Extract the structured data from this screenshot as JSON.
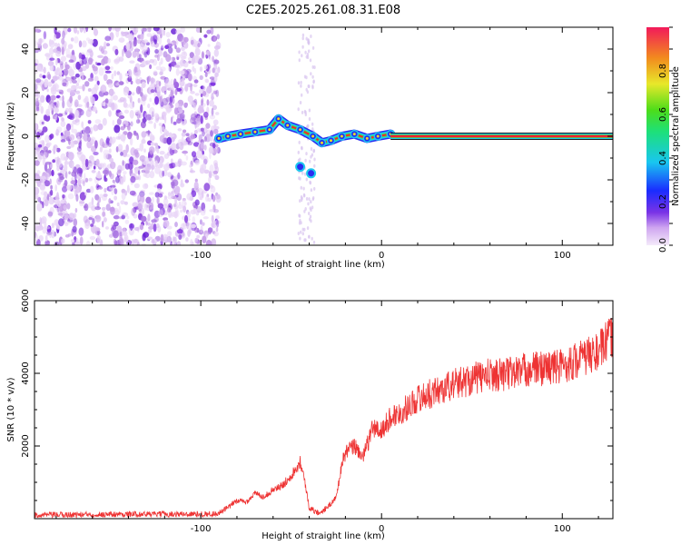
{
  "title": "C2E5.2025.261.08.31.E08",
  "chart_data": [
    {
      "type": "heatmap",
      "name": "spectrogram",
      "xlabel": "Height of straight line (km)",
      "ylabel": "Frequency (Hz)",
      "xlim": [
        -192,
        128
      ],
      "ylim": [
        -50,
        50
      ],
      "xticks": [
        -100,
        0,
        100
      ],
      "yticks": [
        -40,
        -20,
        0,
        20,
        40
      ],
      "colorbar": {
        "label": "Normalized spectral amplitude",
        "range": [
          0,
          1
        ],
        "ticks": [
          "0.0",
          "0.2",
          "0.4",
          "0.6",
          "0.8"
        ],
        "tick_values": [
          0.0,
          0.2,
          0.4,
          0.6,
          0.8
        ]
      },
      "features": {
        "noise_region_x": [
          -192,
          -90
        ],
        "signal_track": [
          {
            "x": -90,
            "y": -1
          },
          {
            "x": -85,
            "y": 0
          },
          {
            "x": -78,
            "y": 1
          },
          {
            "x": -70,
            "y": 2
          },
          {
            "x": -62,
            "y": 3
          },
          {
            "x": -57,
            "y": 8
          },
          {
            "x": -52,
            "y": 5
          },
          {
            "x": -45,
            "y": 3
          },
          {
            "x": -38,
            "y": 0
          },
          {
            "x": -33,
            "y": -3
          },
          {
            "x": -28,
            "y": -2
          },
          {
            "x": -22,
            "y": 0
          },
          {
            "x": -15,
            "y": 1
          },
          {
            "x": -8,
            "y": -1
          },
          {
            "x": -2,
            "y": 0
          },
          {
            "x": 5,
            "y": 1
          },
          {
            "x": 128,
            "y": 0
          }
        ],
        "side_track": [
          {
            "x": -45,
            "y": -14
          },
          {
            "x": -39,
            "y": -17
          }
        ],
        "steady_line_from_x": 5,
        "steady_line_y": 0
      }
    },
    {
      "type": "line",
      "name": "snr",
      "xlabel": "Height of straight line (km)",
      "ylabel": "SNR (10 * v/v)",
      "xlim": [
        -192,
        128
      ],
      "ylim": [
        0,
        6000
      ],
      "xticks": [
        -100,
        0,
        100
      ],
      "yticks": [
        2000,
        4000,
        6000
      ],
      "color": "#ee3333",
      "series": [
        {
          "name": "SNR",
          "x": [
            -192,
            -150,
            -95,
            -90,
            -85,
            -80,
            -75,
            -70,
            -65,
            -60,
            -55,
            -50,
            -47,
            -45,
            -42,
            -40,
            -35,
            -30,
            -25,
            -22,
            -20,
            -15,
            -10,
            -5,
            0,
            5,
            10,
            20,
            30,
            40,
            50,
            60,
            70,
            80,
            90,
            100,
            110,
            120,
            127
          ],
          "y": [
            100,
            120,
            130,
            150,
            300,
            500,
            450,
            700,
            600,
            800,
            900,
            1200,
            1400,
            1600,
            900,
            300,
            150,
            300,
            600,
            1500,
            1800,
            2000,
            1700,
            2500,
            2400,
            2800,
            2900,
            3300,
            3500,
            3700,
            3850,
            3950,
            4000,
            4100,
            4150,
            4200,
            4400,
            4600,
            5000
          ]
        }
      ]
    }
  ]
}
